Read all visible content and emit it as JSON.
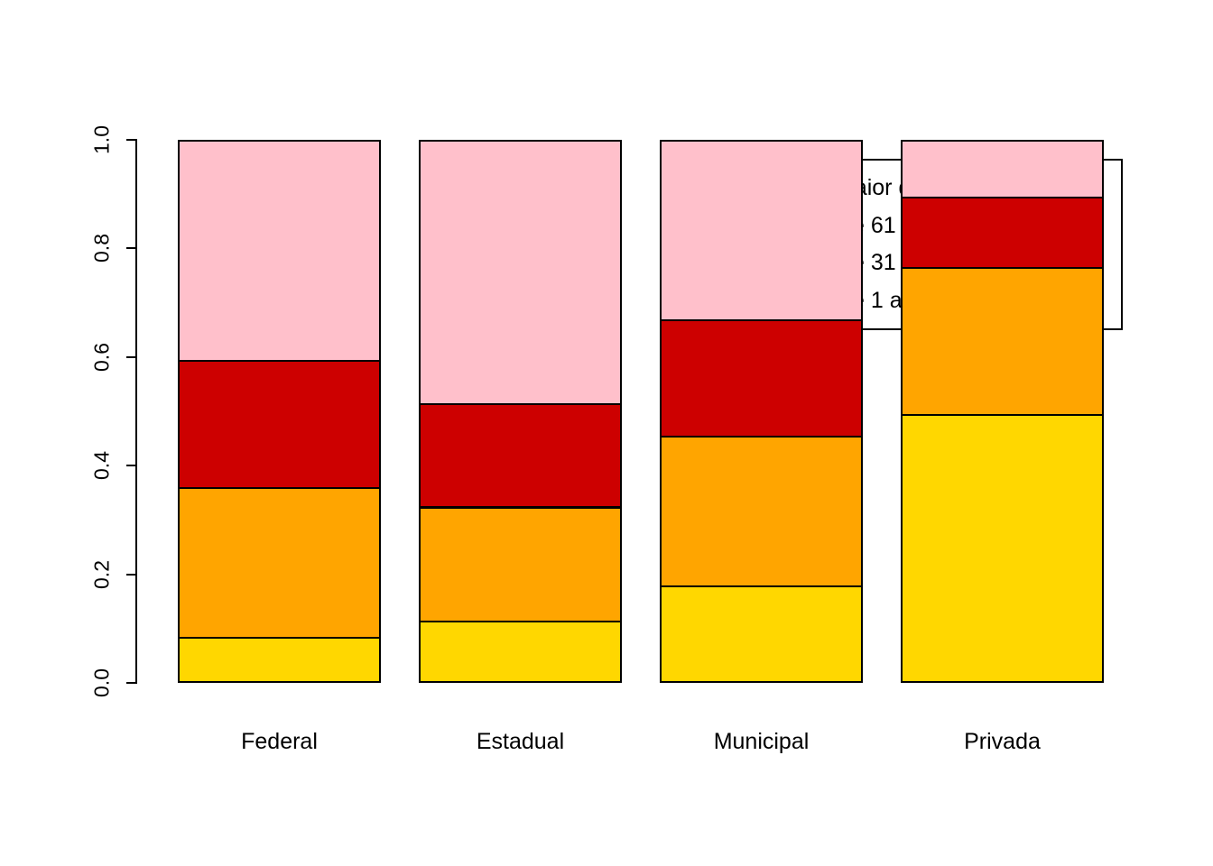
{
  "chart_data": {
    "type": "bar",
    "stacked": true,
    "orientation": "vertical",
    "title": "",
    "xlabel": "",
    "ylabel": "",
    "ylim": [
      0,
      1
    ],
    "yticks": [
      "0.0",
      "0.2",
      "0.4",
      "0.6",
      "0.8",
      "1.0"
    ],
    "grid": false,
    "categories": [
      "Federal",
      "Estadual",
      "Municipal",
      "Privada"
    ],
    "series": [
      {
        "name": "De 1 a 30 alunos",
        "color": "#FFD700",
        "values": [
          0.085,
          0.115,
          0.18,
          0.495
        ]
      },
      {
        "name": "De 31 a 60 alunos",
        "color": "#FFA500",
        "values": [
          0.275,
          0.21,
          0.275,
          0.27
        ]
      },
      {
        "name": "De 61 a 90 alunos",
        "color": "#CD0000",
        "values": [
          0.235,
          0.19,
          0.215,
          0.13
        ]
      },
      {
        "name": "Maior que 90 alunos",
        "color": "#FFC0CB",
        "values": [
          0.405,
          0.485,
          0.33,
          0.105
        ]
      }
    ],
    "legend": {
      "position": "top-right",
      "entries": [
        "Maior que 90 alunos",
        "De 61 a 90 alunos",
        "De 31 a 60 alunos",
        "De 1 a 30 alunos"
      ]
    }
  }
}
